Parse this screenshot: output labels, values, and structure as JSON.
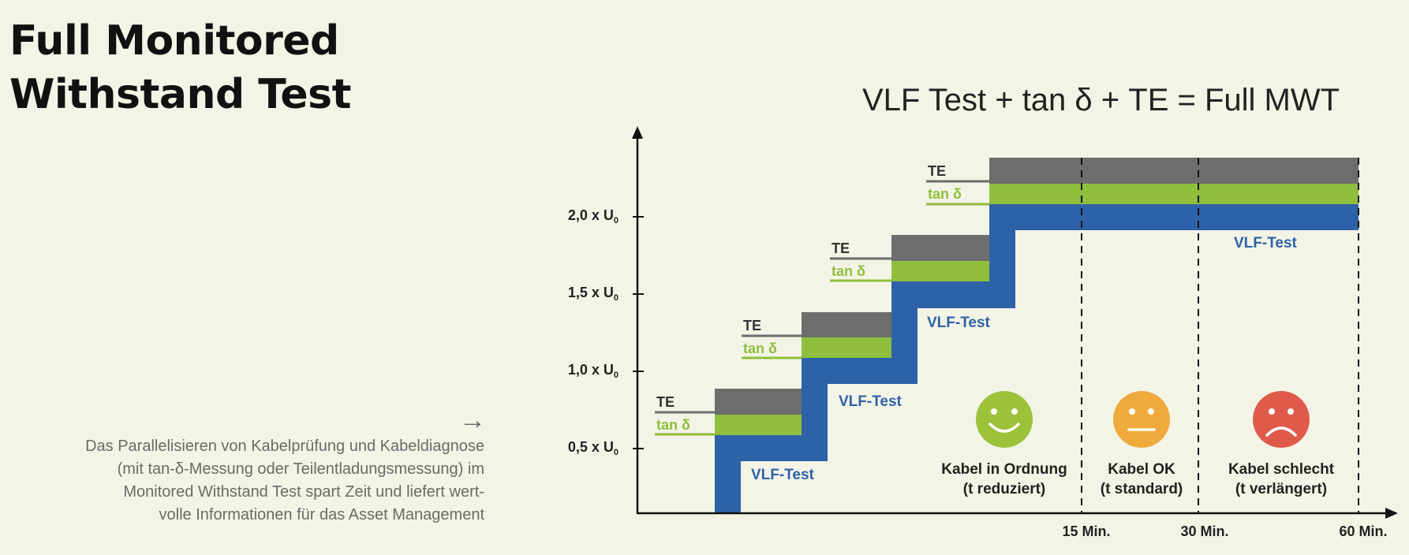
{
  "title": {
    "line1": "Full Monitored",
    "line2": "Withstand Test"
  },
  "arrow_icon": "right-arrow-icon",
  "caption": {
    "lines": [
      "Das Parallelisieren von Kabelprüfung und Kabeldiagnose",
      "(mit tan-δ-Messung oder Teilentladungsmessung) im",
      "Monitored Withstand Test spart Zeit und liefert wert-",
      "volle Informationen für das Asset Management"
    ]
  },
  "diagram": {
    "equation": "VLF Test + tan δ + TE = Full MWT",
    "y_ticks": [
      {
        "prefix": "0,5 x U",
        "sub": "0"
      },
      {
        "prefix": "1,0 x U",
        "sub": "0"
      },
      {
        "prefix": "1,5 x U",
        "sub": "0"
      },
      {
        "prefix": "2,0 x U",
        "sub": "0"
      }
    ],
    "x_ticks": [
      "15 Min.",
      "30 Min.",
      "60 Min."
    ],
    "steps": [
      {
        "te": "TE",
        "tan": "tan δ",
        "vlf": "VLF-Test"
      },
      {
        "te": "TE",
        "tan": "tan δ",
        "vlf": "VLF-Test"
      },
      {
        "te": "TE",
        "tan": "tan δ",
        "vlf": "VLF-Test"
      },
      {
        "te": "TE",
        "tan": "tan δ",
        "vlf": "VLF-Test"
      }
    ],
    "outcomes": [
      {
        "icon": "happy-face-icon",
        "line1": "Kabel in Ordnung",
        "line2": "(t reduziert)",
        "color": "#9cc23a"
      },
      {
        "icon": "neutral-face-icon",
        "line1": "Kabel OK",
        "line2": "(t standard)",
        "color": "#efaa3c"
      },
      {
        "icon": "sad-face-icon",
        "line1": "Kabel schlecht",
        "line2": "(t verlängert)",
        "color": "#e05a4b"
      }
    ],
    "colors": {
      "vlf": "#2e62a8",
      "tan": "#8fbf3c",
      "te": "#6d6d6d",
      "axis": "#111111"
    }
  }
}
